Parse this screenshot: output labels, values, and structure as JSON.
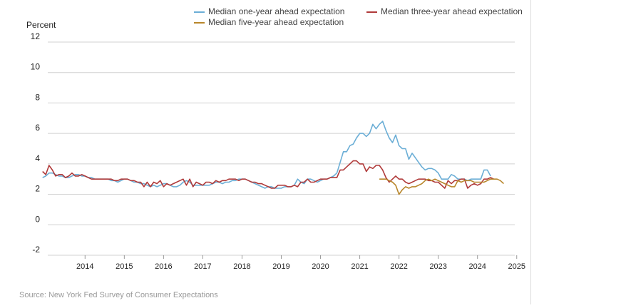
{
  "chart_data": {
    "type": "line",
    "ylabel": "Percent",
    "ylim": [
      -2,
      12
    ],
    "yticks": [
      "12",
      "10",
      "8",
      "6",
      "4",
      "2",
      "0",
      "-2"
    ],
    "yticks_values": [
      12,
      10,
      8,
      6,
      4,
      2,
      0,
      -2
    ],
    "xlim": [
      2013.55,
      2025.45
    ],
    "xticks": [
      "2014",
      "2015",
      "2016",
      "2017",
      "2018",
      "2019",
      "2020",
      "2021",
      "2022",
      "2023",
      "2024",
      "2025"
    ],
    "grid": true,
    "legend_position": "top",
    "source": "Source: New York Fed Survey of Consumer Expectations",
    "series": [
      {
        "name": "Median one-year ahead expectation",
        "color": "#6baed6",
        "x_start": "2013-06",
        "values": [
          3.1,
          3.2,
          3.4,
          3.4,
          3.3,
          3.2,
          3.2,
          3.1,
          3.1,
          3.2,
          3.3,
          3.3,
          3.2,
          3.2,
          3.1,
          3.1,
          3.0,
          3.0,
          3.0,
          3.0,
          3.0,
          2.9,
          2.9,
          2.8,
          2.9,
          3.0,
          3.0,
          2.9,
          2.8,
          2.8,
          2.7,
          2.7,
          2.6,
          2.5,
          2.6,
          2.5,
          2.6,
          2.7,
          2.7,
          2.6,
          2.5,
          2.5,
          2.6,
          2.8,
          2.9,
          2.8,
          2.6,
          2.6,
          2.6,
          2.6,
          2.6,
          2.6,
          2.7,
          2.8,
          2.8,
          2.7,
          2.8,
          2.8,
          2.9,
          2.9,
          3.0,
          3.0,
          3.0,
          2.9,
          2.8,
          2.7,
          2.6,
          2.5,
          2.4,
          2.5,
          2.5,
          2.4,
          2.4,
          2.4,
          2.5,
          2.5,
          2.5,
          2.6,
          3.0,
          2.8,
          2.7,
          3.0,
          3.0,
          2.9,
          2.8,
          2.9,
          3.0,
          3.0,
          3.1,
          3.2,
          3.4,
          4.1,
          4.8,
          4.8,
          5.2,
          5.3,
          5.7,
          6.0,
          6.0,
          5.8,
          6.0,
          6.6,
          6.3,
          6.6,
          6.8,
          6.2,
          5.7,
          5.4,
          5.9,
          5.2,
          5.0,
          5.0,
          4.3,
          4.7,
          4.4,
          4.1,
          3.8,
          3.6,
          3.7,
          3.7,
          3.6,
          3.4,
          3.0,
          3.0,
          3.0,
          3.3,
          3.2,
          3.0,
          3.0,
          3.0,
          2.9,
          3.0,
          3.0,
          3.0,
          3.0,
          3.6,
          3.6,
          3.2
        ]
      },
      {
        "name": "Median three-year ahead expectation",
        "color": "#b03a3a",
        "x_start": "2013-06",
        "values": [
          3.5,
          3.3,
          3.9,
          3.6,
          3.2,
          3.3,
          3.3,
          3.1,
          3.2,
          3.4,
          3.2,
          3.2,
          3.3,
          3.2,
          3.1,
          3.0,
          3.0,
          3.0,
          3.0,
          3.0,
          3.0,
          3.0,
          2.9,
          2.9,
          3.0,
          3.0,
          3.0,
          2.9,
          2.9,
          2.8,
          2.8,
          2.5,
          2.8,
          2.5,
          2.8,
          2.7,
          2.9,
          2.5,
          2.7,
          2.6,
          2.7,
          2.8,
          2.9,
          3.0,
          2.6,
          3.0,
          2.5,
          2.8,
          2.7,
          2.6,
          2.8,
          2.8,
          2.7,
          2.9,
          2.8,
          2.9,
          2.9,
          3.0,
          3.0,
          3.0,
          2.9,
          3.0,
          3.0,
          2.9,
          2.8,
          2.8,
          2.7,
          2.7,
          2.6,
          2.5,
          2.4,
          2.4,
          2.6,
          2.6,
          2.6,
          2.5,
          2.5,
          2.6,
          2.5,
          2.8,
          2.8,
          3.0,
          2.8,
          2.8,
          2.9,
          3.0,
          3.0,
          3.0,
          3.1,
          3.1,
          3.1,
          3.6,
          3.6,
          3.8,
          4.0,
          4.2,
          4.2,
          4.0,
          4.0,
          3.5,
          3.8,
          3.7,
          3.9,
          3.9,
          3.6,
          3.1,
          2.8,
          3.0,
          3.2,
          3.0,
          3.0,
          2.8,
          2.7,
          2.8,
          2.9,
          3.0,
          3.0,
          3.0,
          2.9,
          2.9,
          2.8,
          2.8,
          2.6,
          2.4,
          2.9,
          2.7,
          2.9,
          2.9,
          3.0,
          3.0,
          2.4,
          2.6,
          2.7,
          2.6,
          2.7,
          3.0,
          3.0,
          3.1,
          3.0
        ]
      },
      {
        "name": "Median five-year ahead expectation",
        "color": "#b8862b",
        "x_start": "2022-01",
        "values": [
          3.0,
          3.0,
          3.0,
          2.9,
          2.8,
          2.6,
          2.0,
          2.3,
          2.5,
          2.4,
          2.5,
          2.5,
          2.6,
          2.7,
          2.9,
          3.0,
          2.9,
          3.0,
          2.9,
          2.8,
          2.7,
          2.6,
          2.5,
          2.5,
          2.9,
          2.8,
          2.9,
          2.9,
          2.9,
          2.8,
          2.8,
          2.8,
          2.8,
          2.9,
          3.0,
          3.0,
          3.0,
          2.9,
          2.7
        ]
      }
    ]
  }
}
